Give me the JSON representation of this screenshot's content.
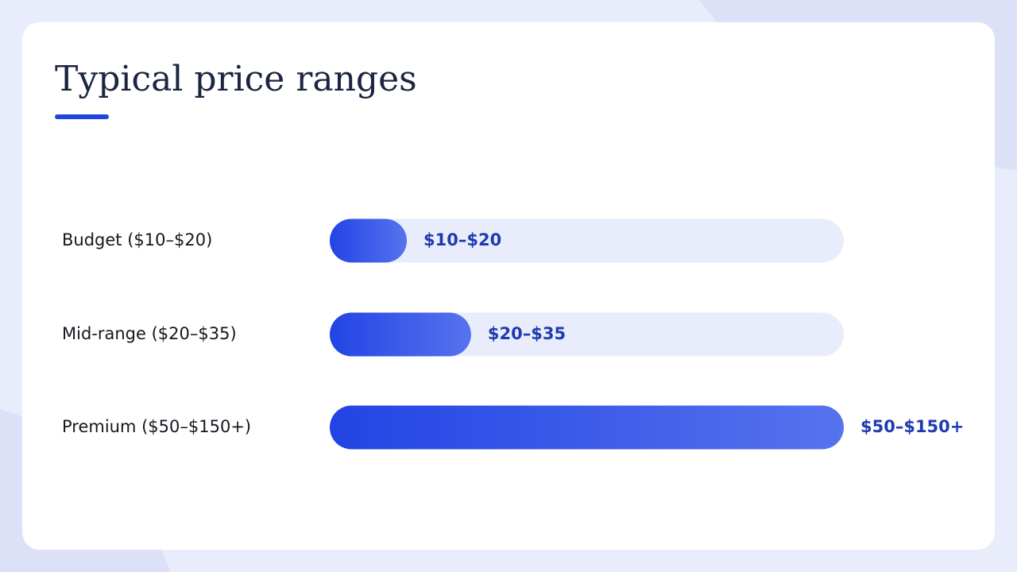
{
  "chart_data": {
    "type": "hbar",
    "title": "Typical price ranges",
    "categories": [
      "Budget ($10–$20)",
      "Mid-range ($20–$35)",
      "Premium ($50–$150+)"
    ],
    "values": [
      15,
      27.5,
      100
    ],
    "range_labels": [
      "$10–$20",
      "$20–$35",
      "$50–$150+"
    ],
    "xlim": [
      0,
      100
    ],
    "colors": [
      "#2244e4",
      "#5673ee"
    ],
    "track_color": "#e9edfb"
  }
}
